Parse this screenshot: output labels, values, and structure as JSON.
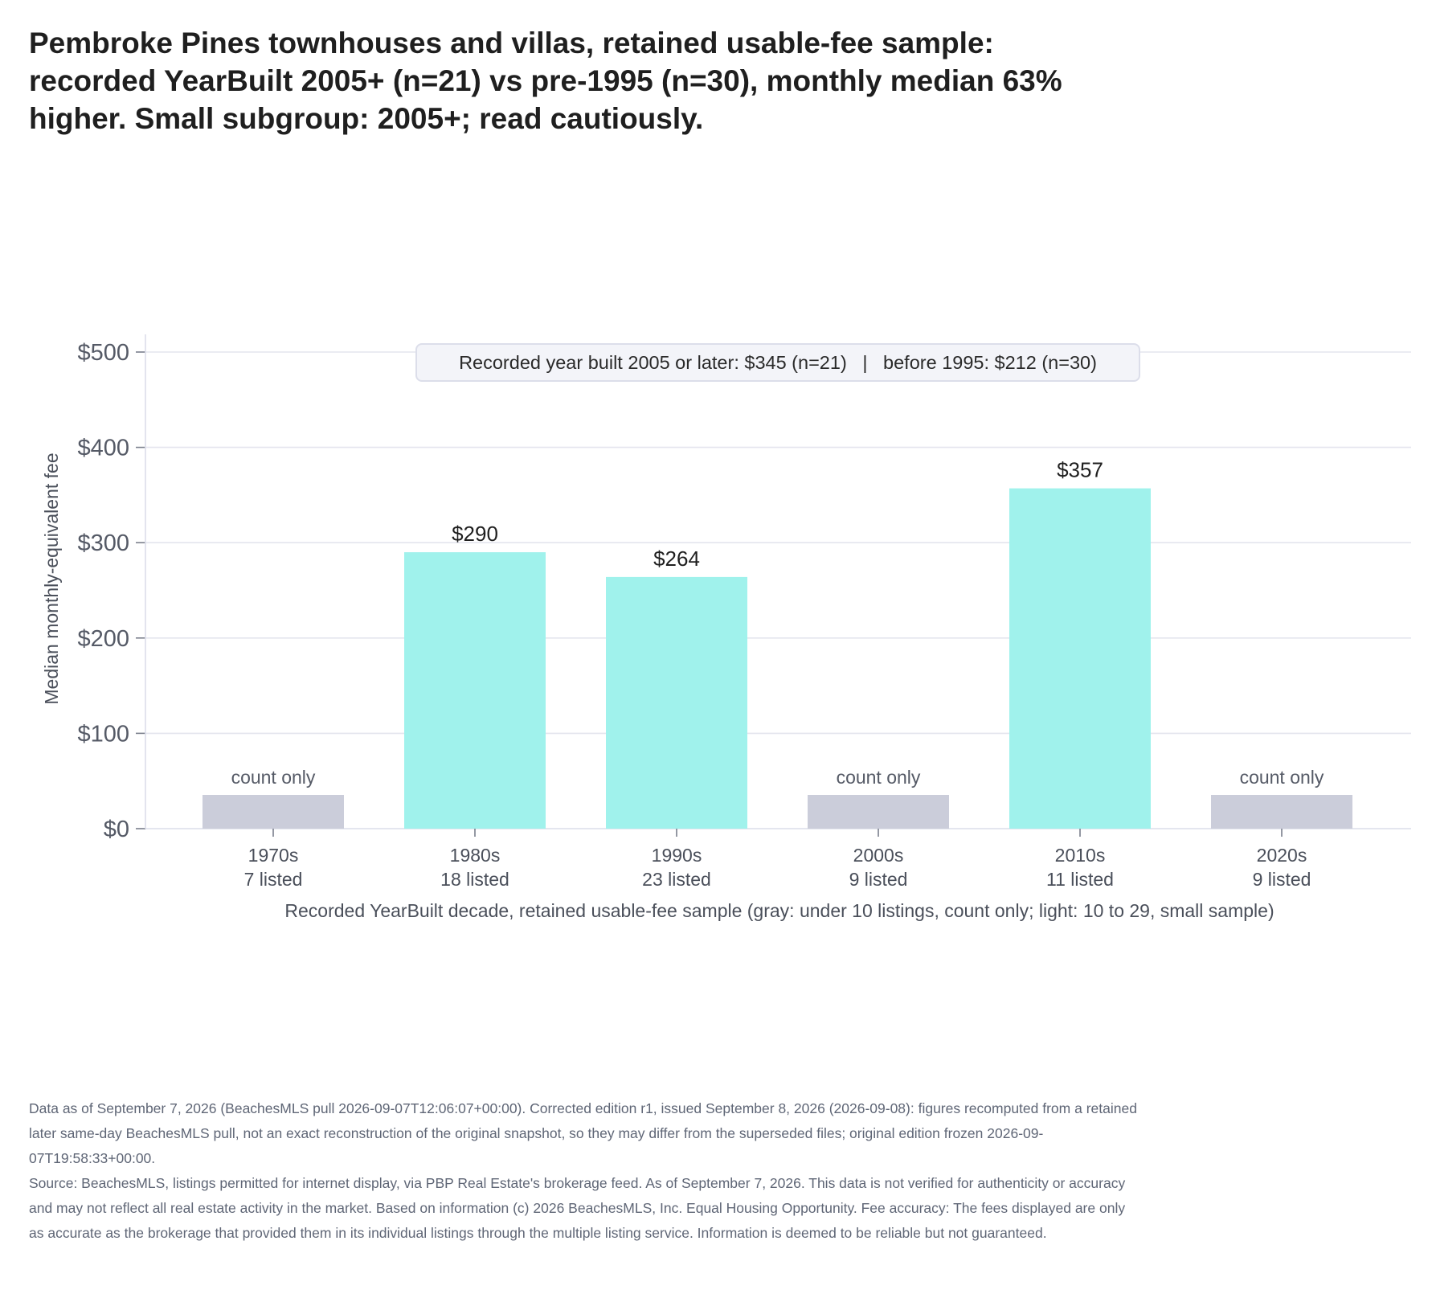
{
  "title": "Pembroke Pines townhouses and villas, retained usable-fee sample: recorded YearBuilt 2005+ (n=21) vs pre-1995 (n=30), monthly median 63% higher. Small subgroup: 2005+; read cautiously.",
  "chart_data": {
    "type": "bar",
    "ylabel": "Median monthly-equivalent fee",
    "xlabel": "Recorded YearBuilt decade, retained usable-fee sample (gray: under 10 listings, count only; light: 10 to 29, small sample)",
    "ylim": [
      0,
      500
    ],
    "yticks": [
      0,
      100,
      200,
      300,
      400,
      500
    ],
    "ytick_labels": [
      "$0",
      "$100",
      "$200",
      "$300",
      "$400",
      "$500"
    ],
    "grid": true,
    "colors": {
      "valued": "#a0f2ec",
      "count_only": "#cbcdda",
      "grid": "#e4e5ee",
      "note_bg": "#f3f4f9",
      "note_border": "#dcdeea"
    },
    "placeholder_height": 42,
    "categories": [
      {
        "decade": "1970s",
        "count": "7 listed",
        "value": null,
        "label": "count only"
      },
      {
        "decade": "1980s",
        "count": "18 listed",
        "value": 290,
        "label": "$290"
      },
      {
        "decade": "1990s",
        "count": "23 listed",
        "value": 264,
        "label": "$264"
      },
      {
        "decade": "2000s",
        "count": "9 listed",
        "value": null,
        "label": "count only"
      },
      {
        "decade": "2010s",
        "count": "11 listed",
        "value": 357,
        "label": "$357"
      },
      {
        "decade": "2020s",
        "count": "9 listed",
        "value": null,
        "label": "count only"
      }
    ],
    "annotation": "Recorded year built 2005 or later: $345 (n=21)   |   before 1995: $212 (n=30)"
  },
  "footer": {
    "edition_note": "Data as of September 7, 2026 (BeachesMLS pull 2026-09-07T12:06:07+00:00). Corrected edition r1, issued September 8, 2026 (2026-09-08): figures recomputed from a retained later same-day BeachesMLS pull, not an exact reconstruction of the original snapshot, so they may differ from the superseded files; original edition frozen 2026-09-07T19:58:33+00:00.",
    "source_note": "Source: BeachesMLS, listings permitted for internet display, via PBP Real Estate's brokerage feed. As of September 7, 2026. This data is not verified for authenticity or accuracy and may not reflect all real estate activity in the market. Based on information (c) 2026 BeachesMLS, Inc. Equal Housing Opportunity. Fee accuracy: The fees displayed are only as accurate as the brokerage that provided them in its individual listings through the multiple listing service. Information is deemed to be reliable but not guaranteed."
  }
}
